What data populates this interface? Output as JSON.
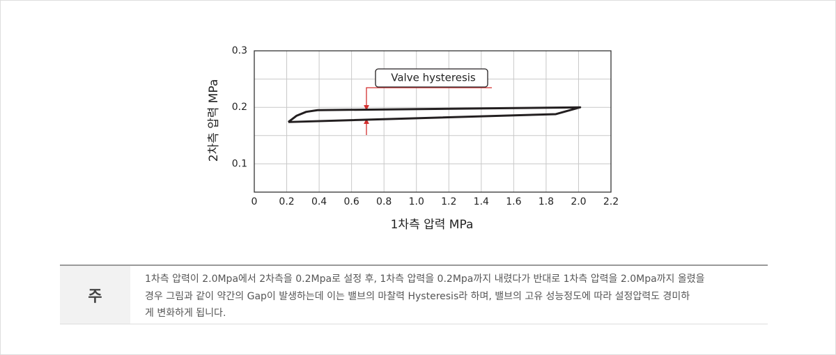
{
  "chart_data": {
    "type": "line",
    "xlabel": "1차측 압력 MPa",
    "ylabel": "2차측 압력 MPa",
    "annotation": "Valve hysteresis",
    "x": [
      0.21,
      0.26,
      0.32,
      0.39,
      2.01,
      1.86,
      0.21
    ],
    "series": [
      {
        "color": "#231f20",
        "values": [
          0.174,
          0.185,
          0.192,
          0.195,
          0.2,
          0.188,
          0.174
        ]
      }
    ],
    "xlim": [
      0,
      2.2
    ],
    "xticks": [
      0,
      0.2,
      0.4,
      0.6,
      0.8,
      {
        "value": 1,
        "label": "1.0"
      },
      1.2,
      1.4,
      1.6,
      1.8,
      {
        "value": 2,
        "label": "2.0"
      },
      2.2
    ],
    "ylim": [
      0.05,
      0.3
    ],
    "yticks": [
      0.1,
      0.2,
      0.3
    ],
    "yminor": [
      0.15,
      0.25
    ],
    "grid": true
  },
  "note": {
    "label": "주",
    "lines": [
      "1차측 압력이 2.0Mpa에서 2차측을 0.2Mpa로 설정 후, 1차측 압력을 0.2Mpa까지 내렸다가 반대로 1차측 압력을 2.0Mpa까지 올렸을",
      "경우 그림과 같이 약간의 Gap이 발생하는데 이는 밸브의 마찰력 Hysteresis라 하며, 밸브의 고유 성능정도에 따라 설정압력도 경미하",
      "게 변화하게 됩니다."
    ]
  }
}
